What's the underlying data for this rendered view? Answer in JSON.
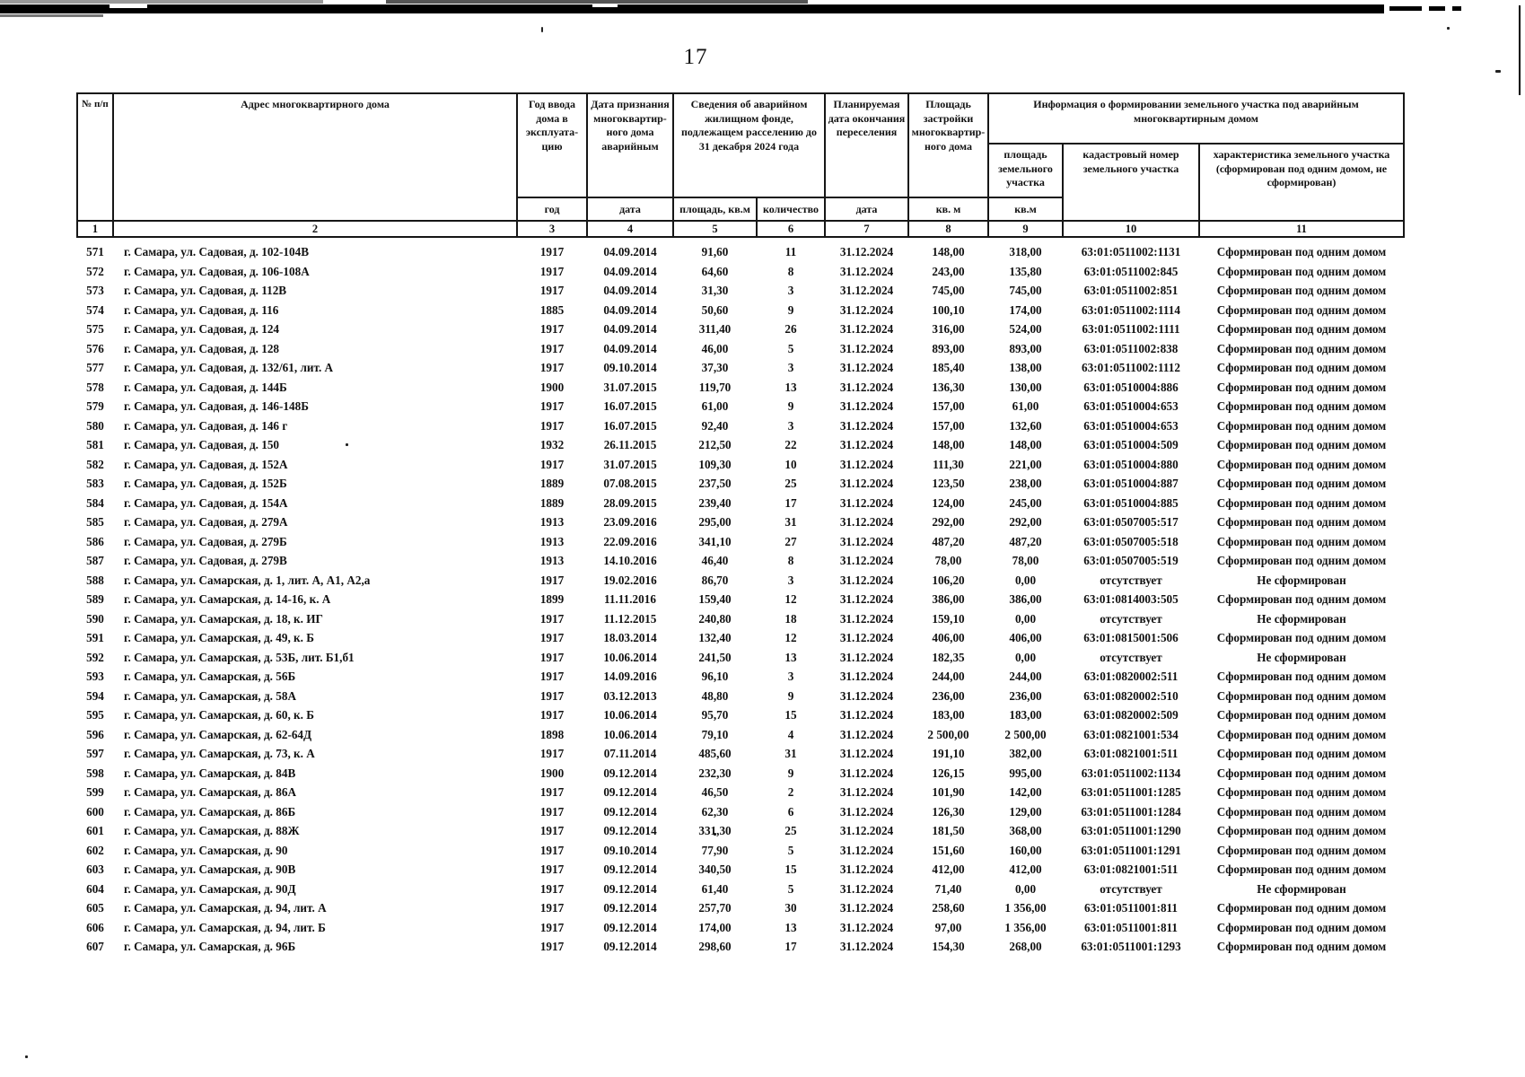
{
  "page_number": "17",
  "table": {
    "headers": {
      "num": "№ п/п",
      "address": "Адрес многоквартирного дома",
      "year_built": "Год ввода дома в эксплуата-цию",
      "date_recognized": "Дата признания многоквартир-ного дома аварийным",
      "fund_info": "Сведения об аварийном жилищном фонде, подлежащем расселению до 31 декабря 2024 года",
      "resettle_date": "Планируемая дата окончания переселения",
      "footprint": "Площадь застройки многоквартир-ного дома",
      "land_info": "Информация о формировании земельного участка под аварийным многоквартирным домом",
      "land_area": "площадь земельного участка",
      "cadastral": "кадастровый номер земельного участка",
      "land_char": "характеристика земельного участка (сформирован под одним домом, не сформирован)"
    },
    "units": {
      "year": "год",
      "date_recognized": "дата",
      "area": "площадь, кв.м",
      "count": "количество",
      "date_plan": "дата",
      "sqm_footprint": "кв. м",
      "sqm_land": "кв.м"
    },
    "col_numbers": [
      "1",
      "2",
      "3",
      "4",
      "5",
      "6",
      "7",
      "8",
      "9",
      "10",
      "11"
    ],
    "rows": [
      [
        "571",
        "г. Самара, ул. Садовая, д. 102-104В",
        "1917",
        "04.09.2014",
        "91,60",
        "11",
        "31.12.2024",
        "148,00",
        "318,00",
        "63:01:0511002:1131",
        "Сформирован под одним домом"
      ],
      [
        "572",
        "г. Самара, ул. Садовая, д. 106-108А",
        "1917",
        "04.09.2014",
        "64,60",
        "8",
        "31.12.2024",
        "243,00",
        "135,80",
        "63:01:0511002:845",
        "Сформирован под одним домом"
      ],
      [
        "573",
        "г. Самара, ул. Садовая, д. 112В",
        "1917",
        "04.09.2014",
        "31,30",
        "3",
        "31.12.2024",
        "745,00",
        "745,00",
        "63:01:0511002:851",
        "Сформирован под одним домом"
      ],
      [
        "574",
        "г. Самара, ул. Садовая, д. 116",
        "1885",
        "04.09.2014",
        "50,60",
        "9",
        "31.12.2024",
        "100,10",
        "174,00",
        "63:01:0511002:1114",
        "Сформирован под одним домом"
      ],
      [
        "575",
        "г. Самара, ул. Садовая, д. 124",
        "1917",
        "04.09.2014",
        "311,40",
        "26",
        "31.12.2024",
        "316,00",
        "524,00",
        "63:01:0511002:1111",
        "Сформирован под одним домом"
      ],
      [
        "576",
        "г. Самара, ул. Садовая, д. 128",
        "1917",
        "04.09.2014",
        "46,00",
        "5",
        "31.12.2024",
        "893,00",
        "893,00",
        "63:01:0511002:838",
        "Сформирован под одним домом"
      ],
      [
        "577",
        "г. Самара, ул. Садовая, д. 132/61, лит. А",
        "1917",
        "09.10.2014",
        "37,30",
        "3",
        "31.12.2024",
        "185,40",
        "138,00",
        "63:01:0511002:1112",
        "Сформирован под одним домом"
      ],
      [
        "578",
        "г. Самара, ул. Садовая, д. 144Б",
        "1900",
        "31.07.2015",
        "119,70",
        "13",
        "31.12.2024",
        "136,30",
        "130,00",
        "63:01:0510004:886",
        "Сформирован под одним домом"
      ],
      [
        "579",
        "г. Самара, ул. Садовая, д. 146-148Б",
        "1917",
        "16.07.2015",
        "61,00",
        "9",
        "31.12.2024",
        "157,00",
        "61,00",
        "63:01:0510004:653",
        "Сформирован под одним домом"
      ],
      [
        "580",
        "г. Самара, ул. Садовая, д. 146 г",
        "1917",
        "16.07.2015",
        "92,40",
        "3",
        "31.12.2024",
        "157,00",
        "132,60",
        "63:01:0510004:653",
        "Сформирован под одним домом"
      ],
      [
        "581",
        "г. Самара, ул. Садовая, д. 150",
        "1932",
        "26.11.2015",
        "212,50",
        "22",
        "31.12.2024",
        "148,00",
        "148,00",
        "63:01:0510004:509",
        "Сформирован под одним домом"
      ],
      [
        "582",
        "г. Самара, ул. Садовая, д. 152А",
        "1917",
        "31.07.2015",
        "109,30",
        "10",
        "31.12.2024",
        "111,30",
        "221,00",
        "63:01:0510004:880",
        "Сформирован под одним домом"
      ],
      [
        "583",
        "г. Самара, ул. Садовая, д. 152Б",
        "1889",
        "07.08.2015",
        "237,50",
        "25",
        "31.12.2024",
        "123,50",
        "238,00",
        "63:01:0510004:887",
        "Сформирован под одним домом"
      ],
      [
        "584",
        "г. Самара, ул. Садовая, д. 154А",
        "1889",
        "28.09.2015",
        "239,40",
        "17",
        "31.12.2024",
        "124,00",
        "245,00",
        "63:01:0510004:885",
        "Сформирован под одним домом"
      ],
      [
        "585",
        "г. Самара, ул. Садовая, д. 279А",
        "1913",
        "23.09.2016",
        "295,00",
        "31",
        "31.12.2024",
        "292,00",
        "292,00",
        "63:01:0507005:517",
        "Сформирован под одним домом"
      ],
      [
        "586",
        "г. Самара, ул. Садовая, д. 279Б",
        "1913",
        "22.09.2016",
        "341,10",
        "27",
        "31.12.2024",
        "487,20",
        "487,20",
        "63:01:0507005:518",
        "Сформирован под одним домом"
      ],
      [
        "587",
        "г. Самара, ул. Садовая, д. 279В",
        "1913",
        "14.10.2016",
        "46,40",
        "8",
        "31.12.2024",
        "78,00",
        "78,00",
        "63:01:0507005:519",
        "Сформирован под одним домом"
      ],
      [
        "588",
        "г. Самара, ул. Самарская, д. 1, лит. А, А1, А2,а",
        "1917",
        "19.02.2016",
        "86,70",
        "3",
        "31.12.2024",
        "106,20",
        "0,00",
        "отсутствует",
        "Не сформирован"
      ],
      [
        "589",
        "г. Самара, ул. Самарская, д. 14-16, к. А",
        "1899",
        "11.11.2016",
        "159,40",
        "12",
        "31.12.2024",
        "386,00",
        "386,00",
        "63:01:0814003:505",
        "Сформирован под одним домом"
      ],
      [
        "590",
        "г. Самара, ул. Самарская, д. 18, к. ИГ",
        "1917",
        "11.12.2015",
        "240,80",
        "18",
        "31.12.2024",
        "159,10",
        "0,00",
        "отсутствует",
        "Не сформирован"
      ],
      [
        "591",
        "г. Самара, ул. Самарская, д. 49, к. Б",
        "1917",
        "18.03.2014",
        "132,40",
        "12",
        "31.12.2024",
        "406,00",
        "406,00",
        "63:01:0815001:506",
        "Сформирован под одним домом"
      ],
      [
        "592",
        "г. Самара, ул. Самарская, д. 53Б, лит. Б1,б1",
        "1917",
        "10.06.2014",
        "241,50",
        "13",
        "31.12.2024",
        "182,35",
        "0,00",
        "отсутствует",
        "Не сформирован"
      ],
      [
        "593",
        "г. Самара, ул. Самарская, д. 56Б",
        "1917",
        "14.09.2016",
        "96,10",
        "3",
        "31.12.2024",
        "244,00",
        "244,00",
        "63:01:0820002:511",
        "Сформирован под одним домом"
      ],
      [
        "594",
        "г. Самара, ул. Самарская, д. 58А",
        "1917",
        "03.12.2013",
        "48,80",
        "9",
        "31.12.2024",
        "236,00",
        "236,00",
        "63:01:0820002:510",
        "Сформирован под одним домом"
      ],
      [
        "595",
        "г. Самара, ул. Самарская, д. 60, к. Б",
        "1917",
        "10.06.2014",
        "95,70",
        "15",
        "31.12.2024",
        "183,00",
        "183,00",
        "63:01:0820002:509",
        "Сформирован под одним домом"
      ],
      [
        "596",
        "г. Самара, ул. Самарская, д. 62-64Д",
        "1898",
        "10.06.2014",
        "79,10",
        "4",
        "31.12.2024",
        "2 500,00",
        "2 500,00",
        "63:01:0821001:534",
        "Сформирован под одним домом"
      ],
      [
        "597",
        "г. Самара, ул. Самарская, д. 73, к. А",
        "1917",
        "07.11.2014",
        "485,60",
        "31",
        "31.12.2024",
        "191,10",
        "382,00",
        "63:01:0821001:511",
        "Сформирован под одним домом"
      ],
      [
        "598",
        "г. Самара, ул. Самарская, д. 84В",
        "1900",
        "09.12.2014",
        "232,30",
        "9",
        "31.12.2024",
        "126,15",
        "995,00",
        "63:01:0511002:1134",
        "Сформирован под одним домом"
      ],
      [
        "599",
        "г. Самара, ул. Самарская, д. 86А",
        "1917",
        "09.12.2014",
        "46,50",
        "2",
        "31.12.2024",
        "101,90",
        "142,00",
        "63:01:0511001:1285",
        "Сформирован под одним домом"
      ],
      [
        "600",
        "г. Самара, ул. Самарская, д. 86Б",
        "1917",
        "09.12.2014",
        "62,30",
        "6",
        "31.12.2024",
        "126,30",
        "129,00",
        "63:01:0511001:1284",
        "Сформирован под одним домом"
      ],
      [
        "601",
        "г. Самара, ул. Самарская, д. 88Ж",
        "1917",
        "09.12.2014",
        "331,30",
        "25",
        "31.12.2024",
        "181,50",
        "368,00",
        "63:01:0511001:1290",
        "Сформирован под одним домом"
      ],
      [
        "602",
        "г. Самара, ул. Самарская, д. 90",
        "1917",
        "09.10.2014",
        "77,90",
        "5",
        "31.12.2024",
        "151,60",
        "160,00",
        "63:01:0511001:1291",
        "Сформирован под одним домом"
      ],
      [
        "603",
        "г. Самара, ул. Самарская, д. 90В",
        "1917",
        "09.12.2014",
        "340,50",
        "15",
        "31.12.2024",
        "412,00",
        "412,00",
        "63:01:0821001:511",
        "Сформирован под одним домом"
      ],
      [
        "604",
        "г. Самара, ул. Самарская, д. 90Д",
        "1917",
        "09.12.2014",
        "61,40",
        "5",
        "31.12.2024",
        "71,40",
        "0,00",
        "отсутствует",
        "Не сформирован"
      ],
      [
        "605",
        "г. Самара, ул. Самарская, д. 94, лит. А",
        "1917",
        "09.12.2014",
        "257,70",
        "30",
        "31.12.2024",
        "258,60",
        "1 356,00",
        "63:01:0511001:811",
        "Сформирован под одним домом"
      ],
      [
        "606",
        "г. Самара, ул. Самарская, д. 94, лит. Б",
        "1917",
        "09.12.2014",
        "174,00",
        "13",
        "31.12.2024",
        "97,00",
        "1 356,00",
        "63:01:0511001:811",
        "Сформирован под одним домом"
      ],
      [
        "607",
        "г. Самара, ул. Самарская, д. 96Б",
        "1917",
        "09.12.2014",
        "298,60",
        "17",
        "31.12.2024",
        "154,30",
        "268,00",
        "63:01:0511001:1293",
        "Сформирован под одним домом"
      ]
    ]
  }
}
